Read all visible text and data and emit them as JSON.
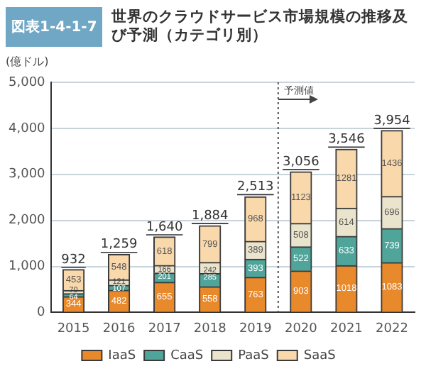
{
  "chart_data": {
    "type": "bar",
    "title": "世界のクラウドサービス市場規模の推移及び予測（カテゴリ別）",
    "ylabel": "(億ドル)",
    "annotations": [
      "図表1-4-1-7"
    ],
    "x": [
      2015,
      2016,
      2017,
      2018,
      2019,
      2020,
      2021,
      2022
    ],
    "xlim": [
      2014.5,
      2022.5
    ],
    "xticks": [
      2015,
      2016,
      2017,
      2018,
      2019,
      2020,
      2021,
      2022
    ],
    "ylim": [
      0,
      5000
    ],
    "yticks": [
      0,
      {
        "value": 1000,
        "label": "1,000"
      },
      {
        "value": 2000,
        "label": "2,000"
      },
      {
        "value": 3000,
        "label": "3,000"
      },
      {
        "value": 4000,
        "label": "4,000"
      },
      {
        "value": 5000,
        "label": "5,000"
      }
    ],
    "stacked": true,
    "grid": "y",
    "legend": "bottom",
    "data_labels": true,
    "series": [
      {
        "name": "IaaS",
        "color": "#e8892b",
        "values": [
          344,
          482,
          655,
          558,
          763,
          903,
          1018,
          1083
        ]
      },
      {
        "name": "CaaS",
        "color": "#4fa59a",
        "values": [
          64,
          107,
          201,
          285,
          393,
          522,
          633,
          739
        ]
      },
      {
        "name": "PaaS",
        "color": "#ebe4cc",
        "values": [
          70,
          121,
          166,
          242,
          389,
          508,
          614,
          696
        ]
      },
      {
        "name": "SaaS",
        "color": "#f9d8ac",
        "values": [
          453,
          548,
          618,
          799,
          968,
          1123,
          1281,
          1436
        ]
      }
    ],
    "totals": [
      "932",
      "1,259",
      "1,640",
      "1,884",
      "2,513",
      "3,056",
      "3,546",
      "3,954"
    ],
    "ref_lines": [
      {
        "axis": "x",
        "value": 2019.5,
        "label": "予測値",
        "line_style": "dotted",
        "color": "#555555"
      }
    ]
  }
}
